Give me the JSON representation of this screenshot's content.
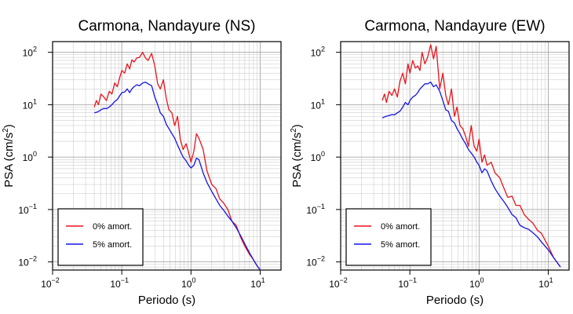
{
  "chart_data": [
    {
      "type": "line",
      "title": "Carmona, Nandayure (NS)",
      "xlabel": "Periodo (s)",
      "ylabel": {
        "base": "PSA (cm/s",
        "sup": "2",
        "tail": ")"
      },
      "xscale": "log",
      "yscale": "log",
      "xlim": [
        0.01,
        20
      ],
      "ylim": [
        0.007,
        160
      ],
      "grid": true,
      "legend_position": "bottom-left",
      "xticks": [
        {
          "value": 0.01,
          "base": "10",
          "exp": "−2"
        },
        {
          "value": 0.1,
          "base": "10",
          "exp": "−1"
        },
        {
          "value": 1,
          "base": "10",
          "exp": "0"
        },
        {
          "value": 10,
          "base": "10",
          "exp": "1"
        }
      ],
      "yticks": [
        {
          "value": 0.01,
          "base": "10",
          "exp": "−2"
        },
        {
          "value": 0.1,
          "base": "10",
          "exp": "−1"
        },
        {
          "value": 1,
          "base": "10",
          "exp": "0"
        },
        {
          "value": 10,
          "base": "10",
          "exp": "1"
        },
        {
          "value": 100,
          "base": "10",
          "exp": "2"
        }
      ],
      "series": [
        {
          "name": "0% amort.",
          "color": "#e8141c",
          "x": [
            0.04,
            0.043,
            0.046,
            0.05,
            0.055,
            0.06,
            0.066,
            0.072,
            0.079,
            0.086,
            0.094,
            0.1,
            0.11,
            0.12,
            0.13,
            0.14,
            0.15,
            0.165,
            0.18,
            0.2,
            0.22,
            0.24,
            0.27,
            0.3,
            0.33,
            0.36,
            0.4,
            0.44,
            0.48,
            0.53,
            0.58,
            0.64,
            0.7,
            0.77,
            0.85,
            0.93,
            1.0,
            1.1,
            1.2,
            1.3,
            1.5,
            1.7,
            2.0,
            2.3,
            2.6,
            3.0,
            3.4,
            3.9,
            4.5,
            5.2,
            6.0,
            7.0,
            8.0,
            9.0,
            10.0
          ],
          "y": [
            9,
            12,
            10,
            16,
            14,
            12,
            18,
            16,
            26,
            22,
            34,
            45,
            40,
            60,
            48,
            72,
            65,
            78,
            80,
            100,
            78,
            70,
            95,
            55,
            25,
            20,
            30,
            13,
            8,
            7,
            4,
            6,
            2.2,
            1.4,
            1.8,
            1.2,
            0.8,
            1.3,
            2.8,
            2.3,
            1.4,
            0.55,
            0.3,
            0.25,
            0.16,
            0.13,
            0.1,
            0.06,
            0.05,
            0.03,
            0.02,
            0.014,
            0.011,
            0.0085,
            0.007
          ]
        },
        {
          "name": "5% amort.",
          "color": "#1414e8",
          "x": [
            0.04,
            0.045,
            0.05,
            0.055,
            0.06,
            0.066,
            0.072,
            0.079,
            0.086,
            0.094,
            0.1,
            0.11,
            0.12,
            0.13,
            0.14,
            0.15,
            0.165,
            0.18,
            0.2,
            0.22,
            0.24,
            0.27,
            0.3,
            0.33,
            0.36,
            0.4,
            0.44,
            0.48,
            0.53,
            0.58,
            0.64,
            0.7,
            0.77,
            0.85,
            0.93,
            1.0,
            1.1,
            1.2,
            1.3,
            1.5,
            1.7,
            2.0,
            2.3,
            2.6,
            3.0,
            3.4,
            3.9,
            4.5,
            5.2,
            6.0,
            7.0,
            8.0,
            9.0,
            10.0
          ],
          "y": [
            7,
            7.3,
            8,
            8.5,
            8.4,
            9,
            10,
            11.5,
            12.5,
            15,
            17,
            17.5,
            20,
            17,
            20,
            22,
            24,
            23,
            26,
            27,
            25,
            23,
            14,
            10,
            7,
            6,
            4.2,
            3.5,
            2.8,
            2.3,
            1.7,
            1.3,
            1.0,
            0.85,
            0.7,
            0.62,
            0.7,
            0.95,
            0.9,
            0.5,
            0.33,
            0.22,
            0.16,
            0.12,
            0.095,
            0.075,
            0.06,
            0.045,
            0.032,
            0.022,
            0.015,
            0.011,
            0.0085,
            0.007
          ]
        }
      ]
    },
    {
      "type": "line",
      "title": "Carmona, Nandayure (EW)",
      "xlabel": "Periodo (s)",
      "ylabel": {
        "base": "PSA (cm/s",
        "sup": "2",
        "tail": ")"
      },
      "xscale": "log",
      "yscale": "log",
      "xlim": [
        0.01,
        20
      ],
      "ylim": [
        0.007,
        160
      ],
      "grid": true,
      "legend_position": "bottom-left",
      "xticks": [
        {
          "value": 0.01,
          "base": "10",
          "exp": "−2"
        },
        {
          "value": 0.1,
          "base": "10",
          "exp": "−1"
        },
        {
          "value": 1,
          "base": "10",
          "exp": "0"
        },
        {
          "value": 10,
          "base": "10",
          "exp": "1"
        }
      ],
      "yticks": [
        {
          "value": 0.01,
          "base": "10",
          "exp": "−2"
        },
        {
          "value": 0.1,
          "base": "10",
          "exp": "−1"
        },
        {
          "value": 1,
          "base": "10",
          "exp": "0"
        },
        {
          "value": 10,
          "base": "10",
          "exp": "1"
        },
        {
          "value": 100,
          "base": "10",
          "exp": "2"
        }
      ],
      "series": [
        {
          "name": "0% amort.",
          "color": "#e8141c",
          "x": [
            0.04,
            0.043,
            0.046,
            0.05,
            0.055,
            0.06,
            0.066,
            0.072,
            0.079,
            0.086,
            0.094,
            0.1,
            0.11,
            0.12,
            0.13,
            0.14,
            0.15,
            0.165,
            0.18,
            0.2,
            0.22,
            0.24,
            0.27,
            0.3,
            0.33,
            0.36,
            0.4,
            0.44,
            0.48,
            0.53,
            0.58,
            0.64,
            0.7,
            0.77,
            0.85,
            0.93,
            1.0,
            1.1,
            1.2,
            1.3,
            1.5,
            1.7,
            2.0,
            2.3,
            2.6,
            3.0,
            3.4,
            3.9,
            4.5,
            5.2,
            6.0,
            7.0,
            8.0,
            9.0,
            10.0,
            12.0,
            15.0
          ],
          "y": [
            12,
            16,
            11,
            18,
            15,
            20,
            14,
            28,
            40,
            25,
            60,
            40,
            70,
            50,
            55,
            45,
            100,
            60,
            80,
            140,
            75,
            130,
            20,
            40,
            15,
            10,
            20,
            6,
            9,
            4,
            3.5,
            2.5,
            1.6,
            4,
            1.6,
            1.3,
            2.2,
            0.8,
            1.1,
            0.7,
            0.8,
            0.5,
            0.4,
            0.25,
            0.17,
            0.18,
            0.12,
            0.12,
            0.08,
            0.065,
            0.055,
            0.04,
            0.035,
            0.026,
            0.02,
            0.012,
            0.008
          ]
        },
        {
          "name": "5% amort.",
          "color": "#1414e8",
          "x": [
            0.04,
            0.045,
            0.05,
            0.055,
            0.06,
            0.066,
            0.072,
            0.079,
            0.086,
            0.094,
            0.1,
            0.11,
            0.12,
            0.13,
            0.14,
            0.15,
            0.165,
            0.18,
            0.2,
            0.22,
            0.24,
            0.27,
            0.3,
            0.33,
            0.36,
            0.4,
            0.44,
            0.48,
            0.53,
            0.58,
            0.64,
            0.7,
            0.77,
            0.85,
            0.93,
            1.0,
            1.1,
            1.2,
            1.3,
            1.5,
            1.7,
            2.0,
            2.3,
            2.6,
            3.0,
            3.4,
            3.9,
            4.5,
            5.2,
            6.0,
            7.0,
            8.0,
            9.0,
            10.0,
            12.0,
            15.0
          ],
          "y": [
            5.6,
            6.0,
            6.2,
            6.5,
            6.4,
            7,
            7.5,
            9,
            11,
            10,
            12,
            14,
            15,
            17,
            20,
            22,
            25,
            25,
            27,
            22,
            24,
            18,
            12,
            8,
            7.5,
            5,
            4.5,
            3.5,
            2.8,
            2.2,
            1.8,
            1.4,
            1.2,
            1.0,
            0.8,
            0.7,
            0.5,
            0.6,
            0.55,
            0.35,
            0.25,
            0.18,
            0.14,
            0.11,
            0.08,
            0.07,
            0.05,
            0.045,
            0.042,
            0.036,
            0.03,
            0.024,
            0.02,
            0.017,
            0.012,
            0.008
          ]
        }
      ]
    }
  ]
}
